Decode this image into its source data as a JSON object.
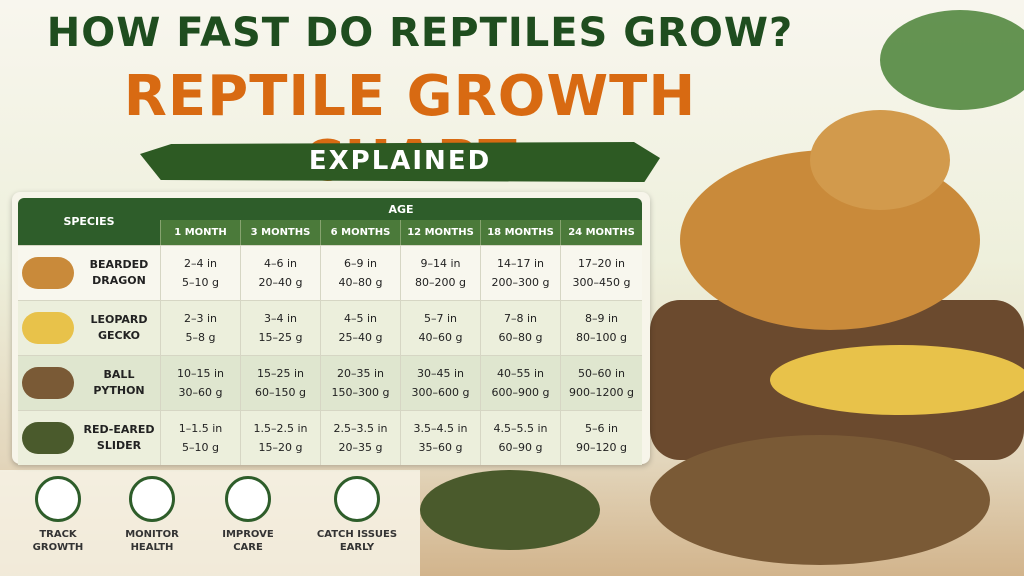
{
  "header": {
    "question": "HOW FAST DO REPTILES GROW?",
    "title": "REPTILE GROWTH CHART",
    "subtitle": "EXPLAINED"
  },
  "table": {
    "species_header": "SPECIES",
    "age_header": "AGE",
    "ages": [
      "1 MONTH",
      "3 MONTHS",
      "6 MONTHS",
      "12 MONTHS",
      "18 MONTHS",
      "24 MONTHS"
    ],
    "rows": [
      {
        "species": [
          "BEARDED",
          "DRAGON"
        ],
        "cells": [
          [
            "2–4 in",
            "5–10 g"
          ],
          [
            "4–6 in",
            "20–40 g"
          ],
          [
            "6–9 in",
            "40–80 g"
          ],
          [
            "9–14 in",
            "80–200 g"
          ],
          [
            "14–17 in",
            "200–300 g"
          ],
          [
            "17–20 in",
            "300–450 g"
          ]
        ]
      },
      {
        "species": [
          "LEOPARD",
          "GECKO"
        ],
        "cells": [
          [
            "2–3 in",
            "5–8 g"
          ],
          [
            "3–4 in",
            "15–25 g"
          ],
          [
            "4–5 in",
            "25–40 g"
          ],
          [
            "5–7 in",
            "40–60 g"
          ],
          [
            "7–8 in",
            "60–80 g"
          ],
          [
            "8–9 in",
            "80–100 g"
          ]
        ]
      },
      {
        "species": [
          "BALL",
          "PYTHON"
        ],
        "cells": [
          [
            "10–15 in",
            "30–60 g"
          ],
          [
            "15–25 in",
            "60–150 g"
          ],
          [
            "20–35 in",
            "150–300 g"
          ],
          [
            "30–45 in",
            "300–600 g"
          ],
          [
            "40–55 in",
            "600–900 g"
          ],
          [
            "50–60 in",
            "900–1200 g"
          ]
        ]
      },
      {
        "species": [
          "RED-EARED",
          "SLIDER"
        ],
        "cells": [
          [
            "1–1.5 in",
            "5–10 g"
          ],
          [
            "1.5–2.5 in",
            "15–20 g"
          ],
          [
            "2.5–3.5 in",
            "20–35 g"
          ],
          [
            "3.5–4.5 in",
            "35–60 g"
          ],
          [
            "4.5–5.5 in",
            "60–90 g"
          ],
          [
            "5–6 in",
            "90–120 g"
          ]
        ]
      }
    ]
  },
  "features": [
    [
      "TRACK",
      "GROWTH"
    ],
    [
      "MONITOR",
      "HEALTH"
    ],
    [
      "IMPROVE",
      "CARE"
    ],
    [
      "CATCH ISSUES",
      "EARLY"
    ]
  ]
}
